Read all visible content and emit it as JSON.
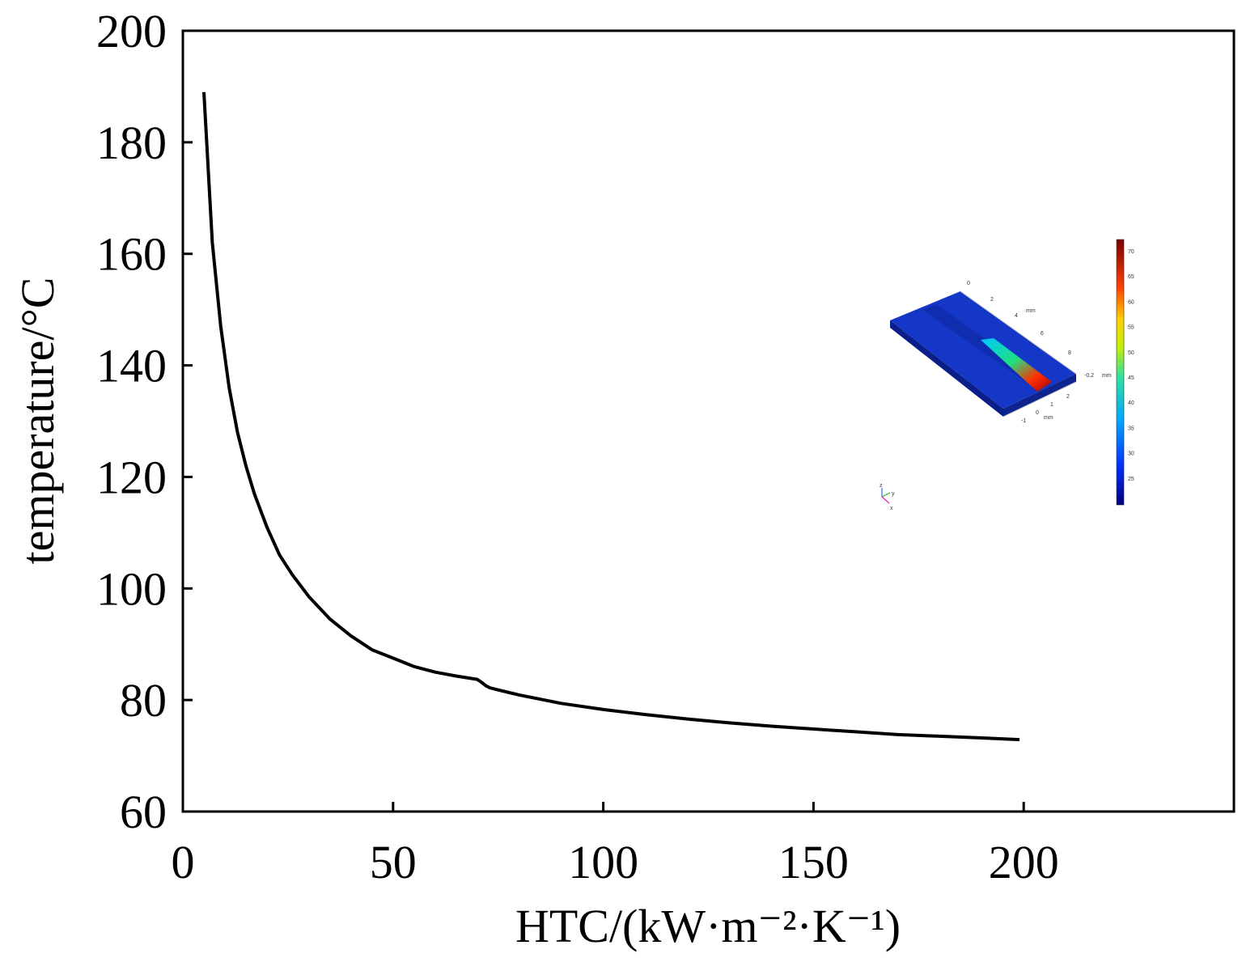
{
  "chart_data": {
    "type": "line",
    "xlabel": "HTC/(kW·m⁻²·K⁻¹)",
    "ylabel": "temperature/°C",
    "xlim": [
      0,
      250
    ],
    "ylim": [
      60,
      200
    ],
    "x_ticks": [
      0,
      50,
      100,
      150,
      200
    ],
    "y_ticks": [
      60,
      80,
      100,
      120,
      140,
      160,
      180,
      200
    ],
    "x_tick_labels": [
      "0",
      "50",
      "100",
      "150",
      "200"
    ],
    "y_tick_labels": [
      "60",
      "80",
      "100",
      "120",
      "140",
      "160",
      "180",
      "200"
    ],
    "grid": false,
    "line_color": "#000000",
    "series": [
      {
        "x": [
          5,
          7,
          9,
          11,
          13,
          15,
          17,
          20,
          23,
          26,
          30,
          35,
          40,
          45,
          50,
          55,
          60,
          65,
          70,
          71,
          72,
          73,
          75,
          80,
          90,
          100,
          110,
          120,
          130,
          140,
          150,
          160,
          170,
          180,
          190,
          199
        ],
        "y": [
          189,
          162,
          147,
          136,
          128,
          122,
          117,
          111,
          106,
          102.5,
          98.5,
          94.5,
          91.5,
          89,
          87.5,
          86,
          85,
          84.3,
          83.7,
          83.2,
          82.6,
          82.2,
          81.8,
          80.9,
          79.4,
          78.3,
          77.4,
          76.6,
          75.9,
          75.3,
          74.8,
          74.3,
          73.8,
          73.5,
          73.2,
          72.9
        ]
      }
    ]
  },
  "inset": {
    "colorbar_ticks": [
      "70",
      "65",
      "60",
      "55",
      "50",
      "45",
      "40",
      "35",
      "30",
      "25"
    ],
    "axis_labels": [
      "0",
      "2",
      "4",
      "mm",
      "6",
      "8",
      "-0.2",
      "mm",
      "2",
      "1",
      "0",
      "-1",
      "mm"
    ],
    "triad_labels": [
      "z",
      "y",
      "x"
    ]
  }
}
